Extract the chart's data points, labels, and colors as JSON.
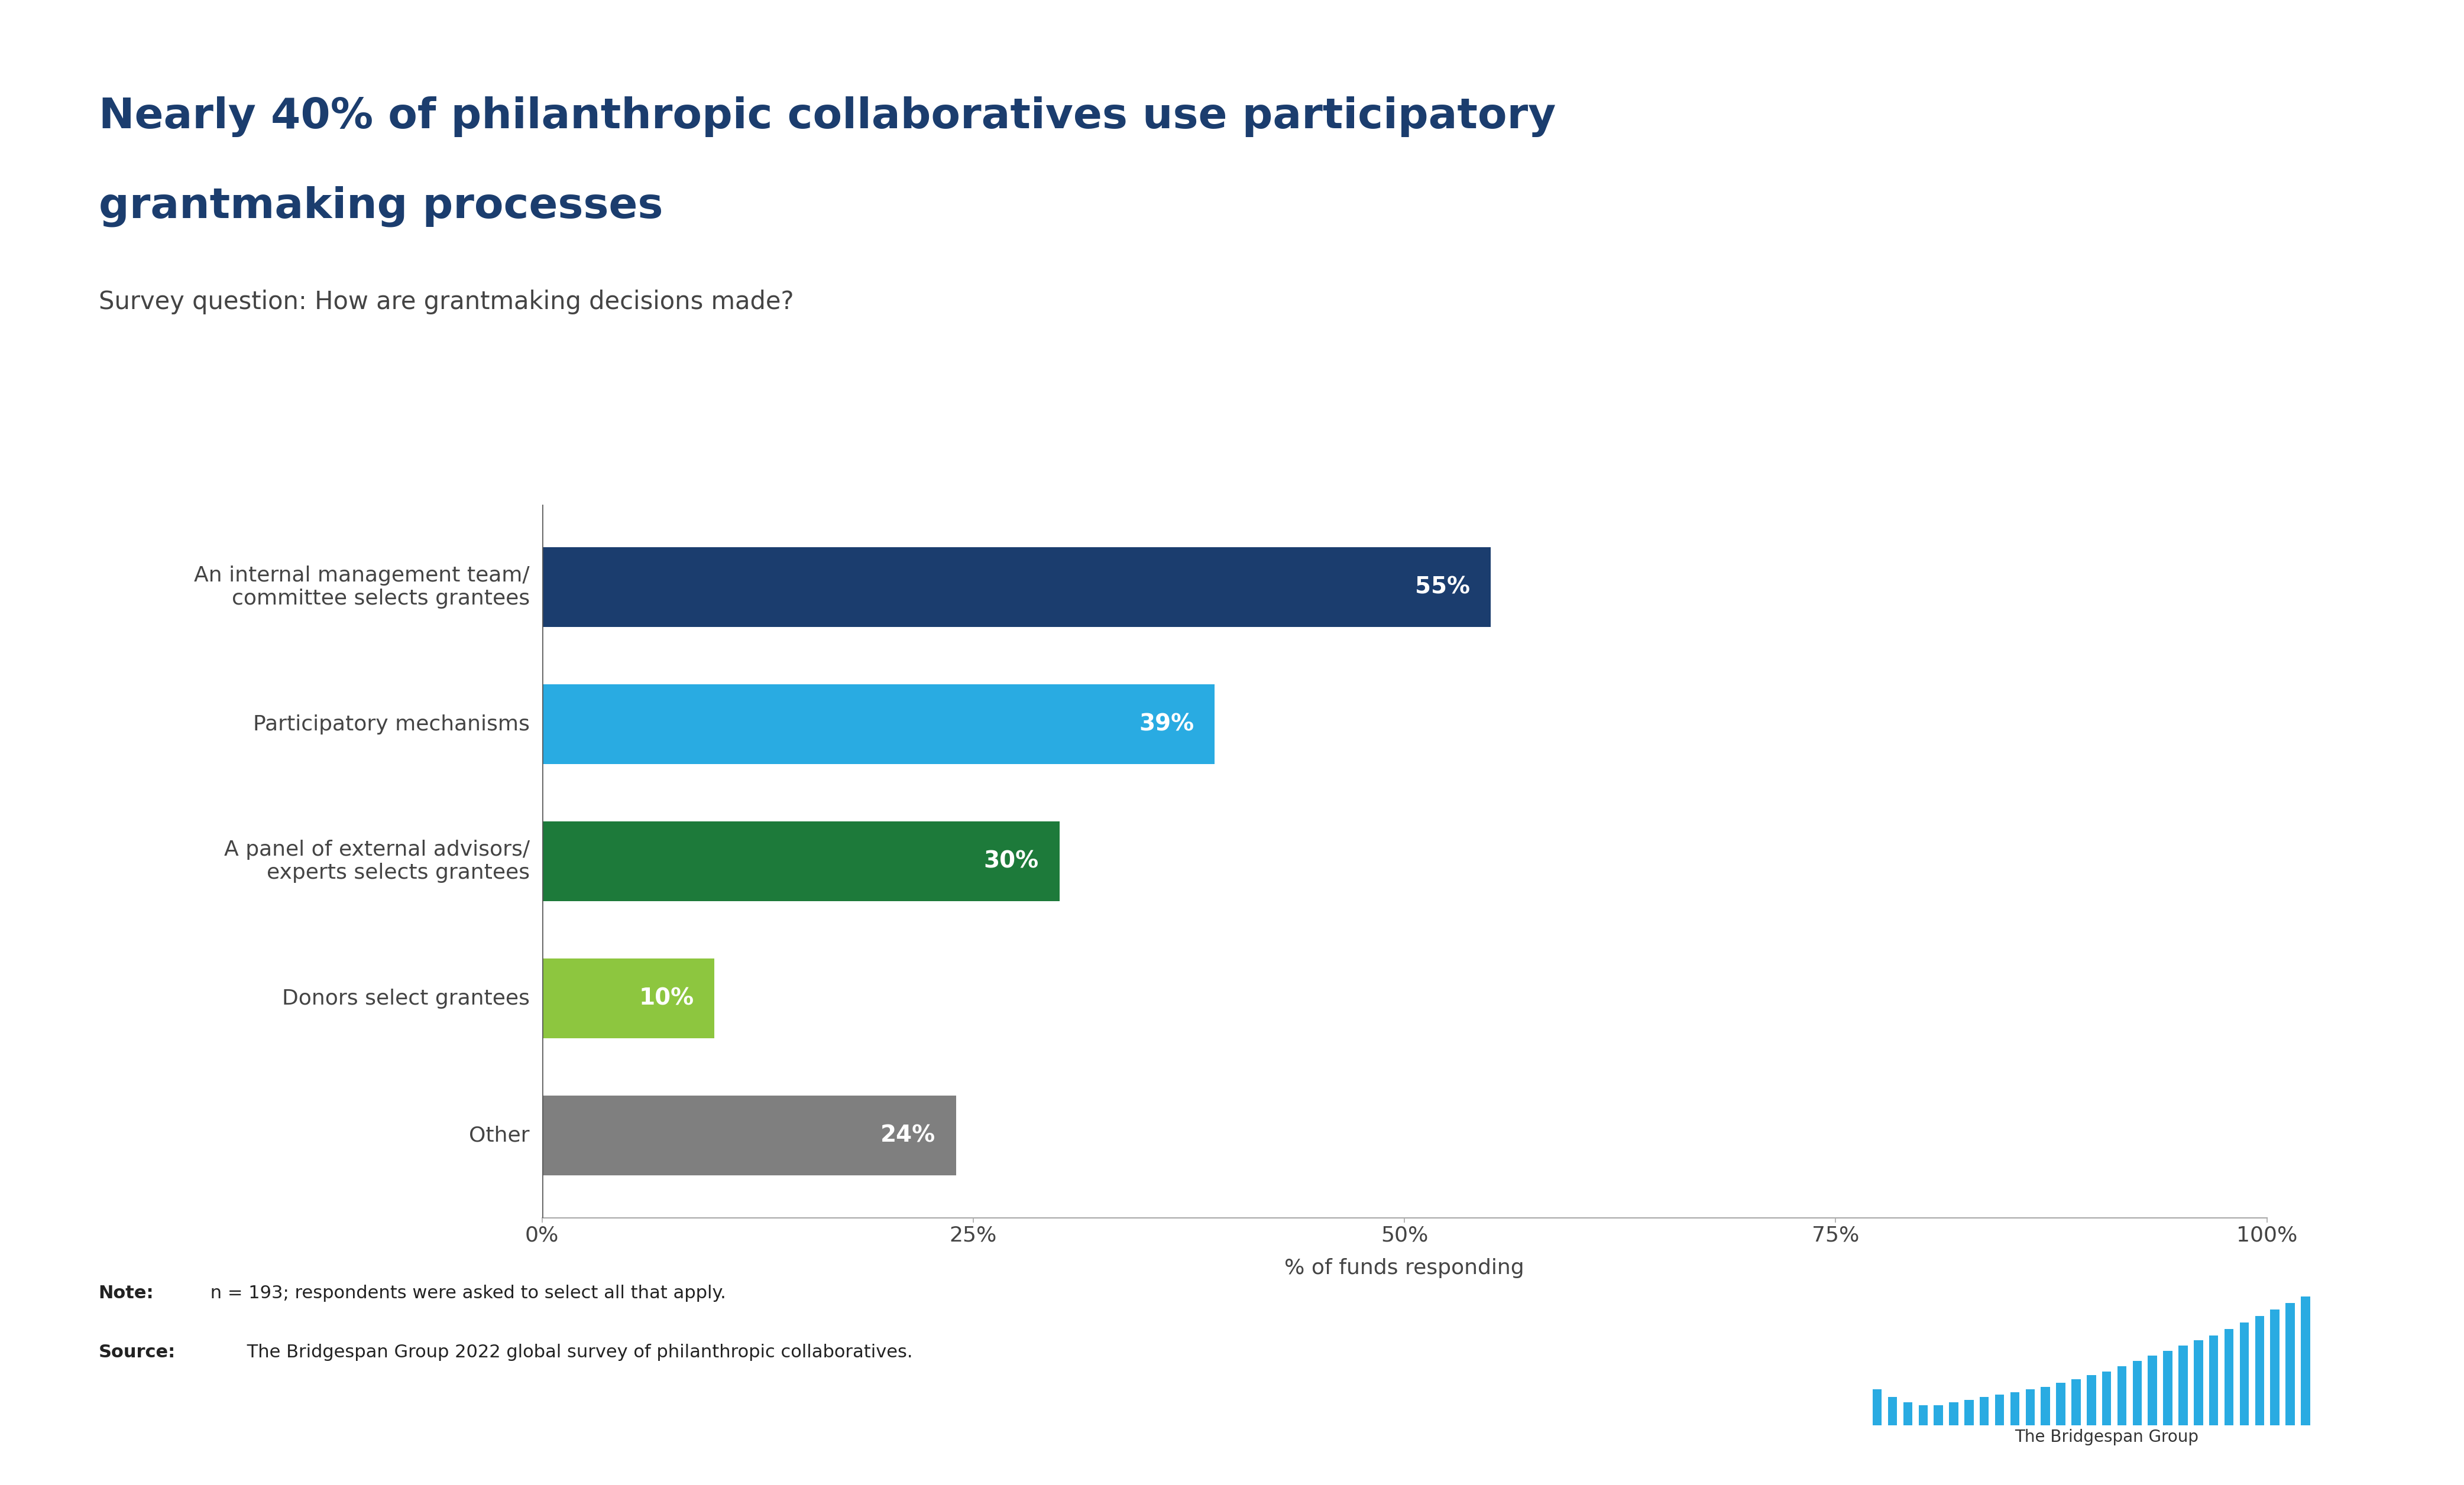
{
  "title_line1": "Nearly 40% of philanthropic collaboratives use participatory",
  "title_line2": "grantmaking processes",
  "subtitle": "Survey question: How are grantmaking decisions made?",
  "categories": [
    "An internal management team/\ncommittee selects grantees",
    "Participatory mechanisms",
    "A panel of external advisors/\nexperts selects grantees",
    "Donors select grantees",
    "Other"
  ],
  "values": [
    55,
    39,
    30,
    10,
    24
  ],
  "bar_colors": [
    "#1b3d6e",
    "#29abe2",
    "#1d7a3a",
    "#8dc63f",
    "#7f7f7f"
  ],
  "label_texts": [
    "55%",
    "39%",
    "30%",
    "10%",
    "24%"
  ],
  "xlabel": "% of funds responding",
  "xlim": [
    0,
    100
  ],
  "xticks": [
    0,
    25,
    50,
    75,
    100
  ],
  "xtick_labels": [
    "0%",
    "25%",
    "50%",
    "75%",
    "100%"
  ],
  "title_color": "#1b3d6e",
  "subtitle_color": "#444444",
  "background_color": "#ffffff",
  "plot_bg_color": "#ffffff",
  "note_bold": "Note:",
  "note_text": " n = 193; respondents were asked to select all that apply.",
  "source_bold": "Source:",
  "source_text": " The Bridgespan Group 2022 global survey of philanthropic collaboratives.",
  "bar_height": 0.58,
  "title_fontsize": 52,
  "subtitle_fontsize": 30,
  "label_fontsize": 28,
  "tick_fontsize": 26,
  "note_fontsize": 22,
  "xlabel_fontsize": 26,
  "category_fontsize": 26,
  "logo_color": "#29abe2",
  "logo_heights": [
    0.28,
    0.22,
    0.18,
    0.16,
    0.16,
    0.18,
    0.2,
    0.22,
    0.24,
    0.26,
    0.28,
    0.3,
    0.33,
    0.36,
    0.39,
    0.42,
    0.46,
    0.5,
    0.54,
    0.58,
    0.62,
    0.66,
    0.7,
    0.75,
    0.8,
    0.85,
    0.9,
    0.95,
    1.0
  ]
}
